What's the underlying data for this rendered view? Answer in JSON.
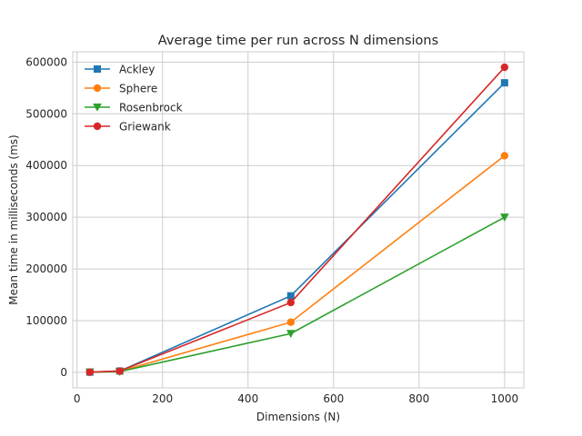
{
  "chart_data": {
    "type": "line",
    "title": "Average time per run across N dimensions",
    "xlabel": "Dimensions (N)",
    "ylabel": "Mean time in milliseconds (ms)",
    "x": [
      30,
      100,
      500,
      1000
    ],
    "xlim": [
      -10,
      1045
    ],
    "ylim": [
      -30000,
      620000
    ],
    "xticks": [
      0,
      200,
      400,
      600,
      800,
      1000
    ],
    "yticks": [
      0,
      100000,
      200000,
      300000,
      400000,
      500000,
      600000
    ],
    "grid": true,
    "legend_position": "top-left",
    "series": [
      {
        "name": "Ackley",
        "color": "#1f77b4",
        "marker": "square",
        "values": [
          500,
          2500,
          148000,
          560000
        ]
      },
      {
        "name": "Sphere",
        "color": "#ff7f0e",
        "marker": "circle",
        "values": [
          400,
          2000,
          97000,
          419000
        ]
      },
      {
        "name": "Rosenbrock",
        "color": "#2ca02c",
        "marker": "triangle-down",
        "values": [
          300,
          1500,
          75000,
          300000
        ]
      },
      {
        "name": "Griewank",
        "color": "#d62728",
        "marker": "circle",
        "values": [
          500,
          2600,
          135000,
          590000
        ]
      }
    ]
  }
}
